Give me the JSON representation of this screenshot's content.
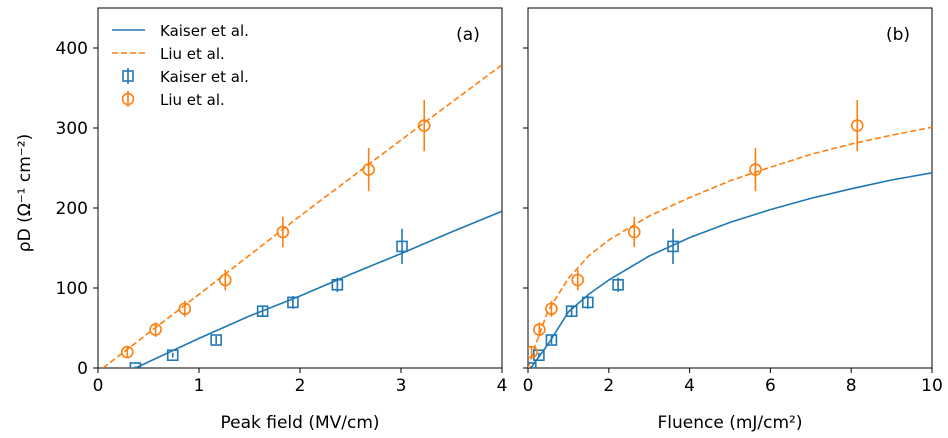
{
  "chart_data": [
    {
      "type": "scatter",
      "panel_label": "(a)",
      "xlabel": "Peak field (MV/cm)",
      "ylabel": "ρD (Ω⁻¹ cm⁻²)",
      "xlim": [
        0,
        4
      ],
      "ylim": [
        0,
        450
      ],
      "xticks": [
        0,
        1,
        2,
        3,
        4
      ],
      "yticks": [
        0,
        100,
        200,
        300,
        400
      ],
      "legend": {
        "placement": "top-left",
        "entries": [
          {
            "label": "Kaiser et al.",
            "style": "solid-line",
            "color": "#1f77b4"
          },
          {
            "label": "Liu et al.",
            "style": "dashed-line",
            "color": "#ff7f0e"
          },
          {
            "label": "Kaiser et al.",
            "style": "square-marker",
            "color": "#1f77b4"
          },
          {
            "label": "Liu et al.",
            "style": "circle-marker",
            "color": "#ff7f0e"
          }
        ]
      },
      "series": [
        {
          "name": "Kaiser et al.",
          "kind": "fit",
          "color": "#1f77b4",
          "x": [
            0.37,
            1.0,
            1.5,
            2.0,
            2.5,
            3.0,
            3.5,
            4.0
          ],
          "y": [
            0,
            37,
            65,
            90,
            117,
            143,
            170,
            196
          ]
        },
        {
          "name": "Liu et al.",
          "kind": "fit",
          "color": "#ff7f0e",
          "x": [
            0.05,
            1.0,
            2.0,
            3.0,
            4.0
          ],
          "y": [
            0,
            92,
            190,
            285,
            379
          ]
        },
        {
          "name": "Kaiser et al.",
          "kind": "data",
          "color": "#1f77b4",
          "marker": "square",
          "x": [
            0.37,
            0.74,
            1.17,
            1.63,
            1.93,
            2.37,
            3.01
          ],
          "y": [
            0,
            16,
            35,
            71,
            82,
            104,
            152
          ],
          "err": [
            2,
            3,
            5,
            6,
            8,
            9,
            22
          ]
        },
        {
          "name": "Liu et al.",
          "kind": "data",
          "color": "#ff7f0e",
          "marker": "circle",
          "x": [
            0.29,
            0.57,
            0.86,
            1.26,
            1.83,
            2.68,
            3.23
          ],
          "y": [
            20,
            48,
            74,
            110,
            170,
            248,
            303
          ],
          "err": [
            7,
            9,
            10,
            13,
            19,
            27,
            32
          ]
        }
      ]
    },
    {
      "type": "scatter",
      "panel_label": "(b)",
      "xlabel": "Fluence (mJ/cm²)",
      "xlim": [
        0,
        10
      ],
      "ylim": [
        0,
        450
      ],
      "xticks": [
        0,
        2,
        4,
        6,
        8,
        10
      ],
      "series": [
        {
          "name": "Kaiser et al.",
          "kind": "fit",
          "color": "#1f77b4",
          "x": [
            0.07,
            0.5,
            1.0,
            1.5,
            2.0,
            3.0,
            4.0,
            5.0,
            6.0,
            7.0,
            8.0,
            9.0,
            10.0
          ],
          "y": [
            0,
            30,
            70,
            92,
            110,
            140,
            163,
            182,
            198,
            212,
            224,
            235,
            244
          ]
        },
        {
          "name": "Liu et al.",
          "kind": "fit",
          "color": "#ff7f0e",
          "x": [
            0.0,
            0.25,
            0.5,
            1.0,
            1.5,
            2.0,
            3.0,
            4.0,
            5.0,
            6.0,
            7.0,
            8.0,
            9.0,
            10.0
          ],
          "y": [
            0,
            38,
            72,
            112,
            140,
            160,
            190,
            213,
            234,
            251,
            267,
            280,
            291,
            301
          ]
        },
        {
          "name": "Kaiser et al.",
          "kind": "data",
          "color": "#1f77b4",
          "marker": "square",
          "x": [
            0.07,
            0.27,
            0.58,
            1.08,
            1.48,
            2.23,
            3.59
          ],
          "y": [
            0,
            16,
            35,
            71,
            82,
            104,
            152
          ],
          "err": [
            2,
            3,
            5,
            6,
            8,
            9,
            22
          ]
        },
        {
          "name": "Liu et al.",
          "kind": "data",
          "color": "#ff7f0e",
          "marker": "circle",
          "x": [
            0.09,
            0.28,
            0.58,
            1.23,
            2.63,
            5.63,
            8.15
          ],
          "y": [
            20,
            48,
            74,
            110,
            170,
            248,
            303
          ],
          "err": [
            7,
            9,
            10,
            13,
            19,
            27,
            32
          ]
        }
      ]
    }
  ]
}
